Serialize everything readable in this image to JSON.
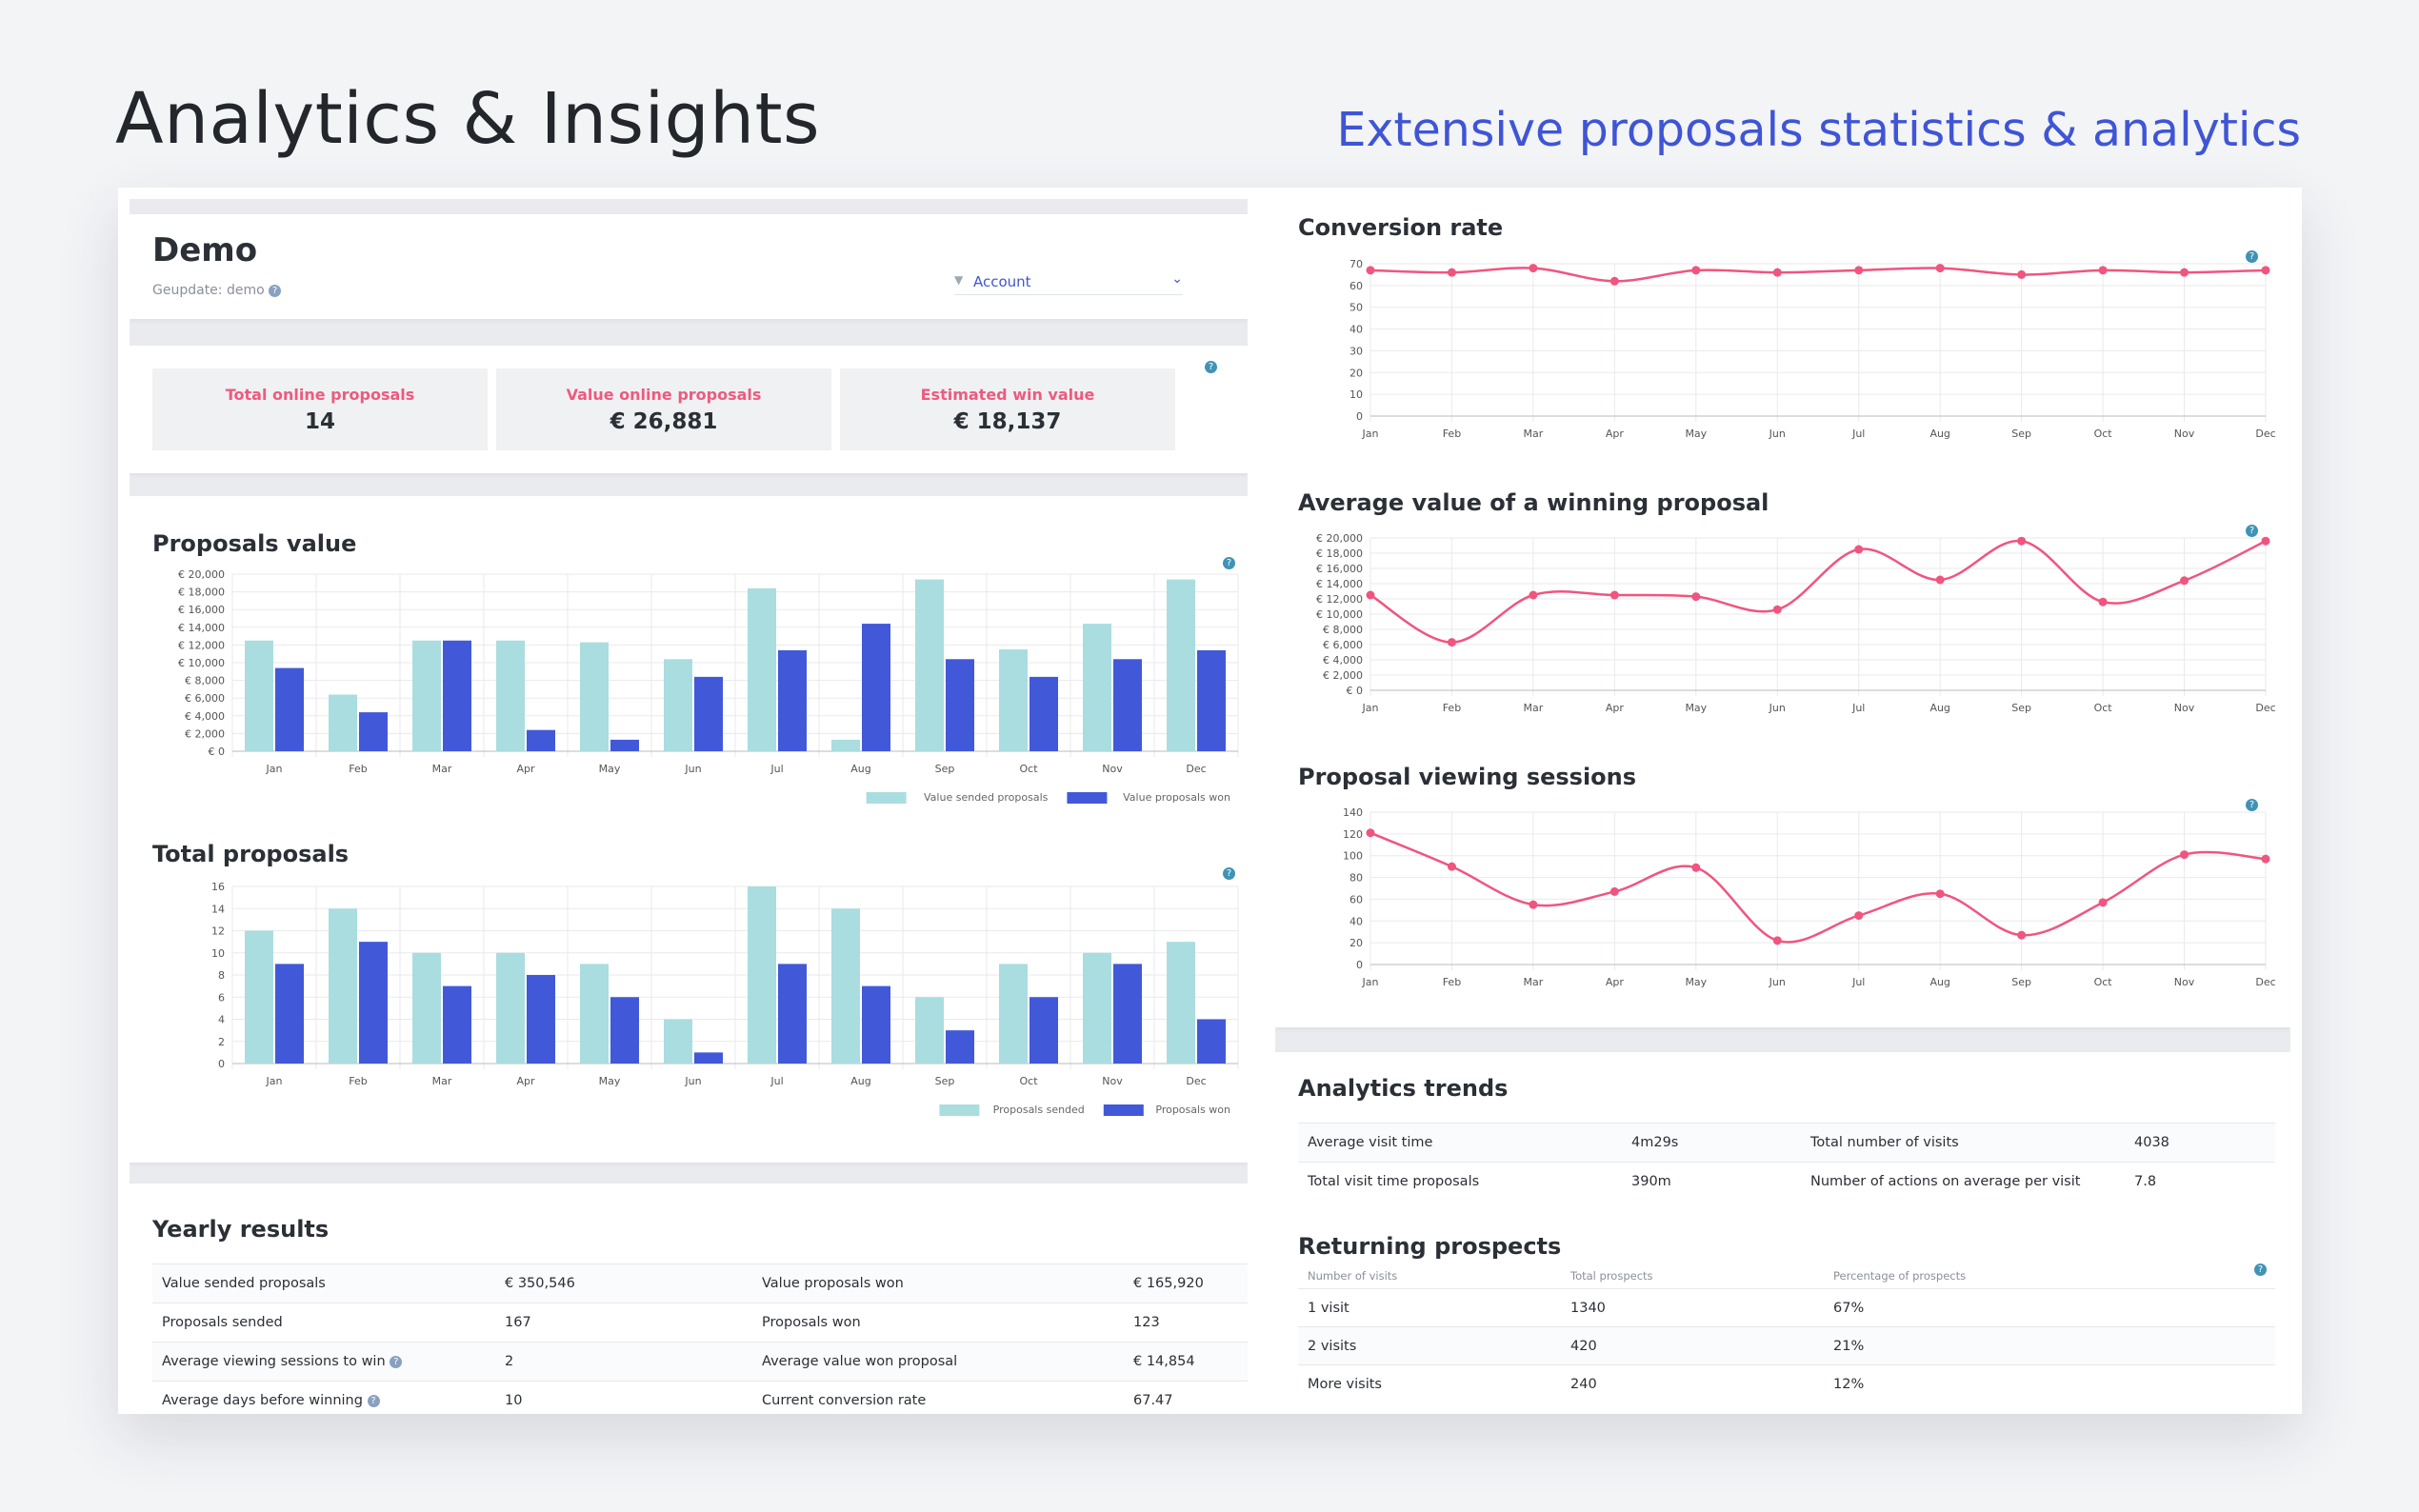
{
  "header": {
    "title": "Analytics & Insights",
    "subtitle": "Extensive proposals statistics & analytics"
  },
  "demo": {
    "title": "Demo",
    "updated": "Geupdate: demo",
    "account_label": "Account"
  },
  "kpis": [
    {
      "label": "Total online proposals",
      "value": "14"
    },
    {
      "label": "Value online proposals",
      "value": "€ 26,881"
    },
    {
      "label": "Estimated win value",
      "value": "€ 18,137"
    }
  ],
  "proposals_value_title": "Proposals value",
  "total_proposals_title": "Total proposals",
  "conversion_title": "Conversion rate",
  "avg_value_title": "Average value of a winning proposal",
  "sessions_title": "Proposal viewing sessions",
  "chart_data": [
    {
      "type": "bar",
      "title": "Proposals value",
      "categories": [
        "Jan",
        "Feb",
        "Mar",
        "Apr",
        "May",
        "Jun",
        "Jul",
        "Aug",
        "Sep",
        "Oct",
        "Nov",
        "Dec"
      ],
      "series": [
        {
          "name": "Value sended proposals",
          "color": "#aadde0",
          "values": [
            12500,
            6400,
            12500,
            12500,
            12300,
            10400,
            18400,
            1300,
            19400,
            11500,
            14400,
            19400
          ]
        },
        {
          "name": "Value proposals won",
          "color": "#4159d8",
          "values": [
            9400,
            4400,
            12500,
            2400,
            1300,
            8400,
            11400,
            14400,
            10400,
            8400,
            10400,
            11400
          ]
        }
      ],
      "ylim": [
        0,
        20000
      ],
      "yticks": [
        0,
        2000,
        4000,
        6000,
        8000,
        10000,
        12000,
        14000,
        16000,
        18000,
        20000
      ],
      "ytick_labels": [
        "€ 0",
        "€ 2,000",
        "€ 4,000",
        "€ 6,000",
        "€ 8,000",
        "€ 10,000",
        "€ 12,000",
        "€ 14,000",
        "€ 16,000",
        "€ 18,000",
        "€ 20,000"
      ],
      "legend": "bottom-right"
    },
    {
      "type": "bar",
      "title": "Total proposals",
      "categories": [
        "Jan",
        "Feb",
        "Mar",
        "Apr",
        "May",
        "Jun",
        "Jul",
        "Aug",
        "Sep",
        "Oct",
        "Nov",
        "Dec"
      ],
      "series": [
        {
          "name": "Proposals sended",
          "color": "#aadde0",
          "values": [
            12,
            14,
            10,
            10,
            9,
            4,
            16,
            14,
            6,
            9,
            10,
            11
          ]
        },
        {
          "name": "Proposals won",
          "color": "#4159d8",
          "values": [
            9,
            11,
            7,
            8,
            6,
            1,
            9,
            7,
            3,
            6,
            9,
            4
          ]
        }
      ],
      "ylim": [
        0,
        16
      ],
      "yticks": [
        0,
        2,
        4,
        6,
        8,
        10,
        12,
        14,
        16
      ],
      "ytick_labels": [
        "0",
        "2",
        "4",
        "6",
        "8",
        "10",
        "12",
        "14",
        "16"
      ],
      "legend": "bottom-right"
    },
    {
      "type": "line",
      "title": "Conversion rate",
      "categories": [
        "Jan",
        "Feb",
        "Mar",
        "Apr",
        "May",
        "Jun",
        "Jul",
        "Aug",
        "Sep",
        "Oct",
        "Nov",
        "Dec"
      ],
      "values": [
        67,
        66,
        68,
        62,
        67,
        66,
        67,
        68,
        65,
        67,
        66,
        67
      ],
      "ylim": [
        0,
        70
      ],
      "yticks": [
        0,
        10,
        20,
        30,
        40,
        50,
        60,
        70
      ],
      "ytick_labels": [
        "0",
        "10",
        "20",
        "30",
        "40",
        "50",
        "60",
        "70"
      ],
      "color": "#f0557f"
    },
    {
      "type": "line",
      "title": "Average value of a winning proposal",
      "categories": [
        "Jan",
        "Feb",
        "Mar",
        "Apr",
        "May",
        "Jun",
        "Jul",
        "Aug",
        "Sep",
        "Oct",
        "Nov",
        "Dec"
      ],
      "values": [
        12500,
        6300,
        12500,
        12500,
        12300,
        10600,
        18500,
        14500,
        19600,
        11600,
        14400,
        19600
      ],
      "ylim": [
        0,
        20000
      ],
      "yticks": [
        0,
        2000,
        4000,
        6000,
        8000,
        10000,
        12000,
        14000,
        16000,
        18000,
        20000
      ],
      "ytick_labels": [
        "€ 0",
        "€ 2,000",
        "€ 4,000",
        "€ 6,000",
        "€ 8,000",
        "€ 10,000",
        "€ 12,000",
        "€ 14,000",
        "€ 16,000",
        "€ 18,000",
        "€ 20,000"
      ],
      "color": "#f0557f"
    },
    {
      "type": "line",
      "title": "Proposal viewing sessions",
      "categories": [
        "Jan",
        "Feb",
        "Mar",
        "Apr",
        "May",
        "Jun",
        "Jul",
        "Aug",
        "Sep",
        "Oct",
        "Nov",
        "Dec"
      ],
      "values": [
        121,
        90,
        55,
        67,
        89,
        22,
        45,
        65,
        27,
        57,
        101,
        97
      ],
      "ylim": [
        0,
        140
      ],
      "yticks": [
        0,
        20,
        40,
        60,
        80,
        100,
        120,
        140
      ],
      "ytick_labels": [
        "0",
        "20",
        "40",
        "60",
        "80",
        "100",
        "120",
        "140"
      ],
      "color": "#f0557f"
    }
  ],
  "yearly": {
    "title": "Yearly results",
    "rows": [
      [
        "Value sended proposals",
        "€ 350,546",
        "Value proposals won",
        "€ 165,920"
      ],
      [
        "Proposals sended",
        "167",
        "Proposals won",
        "123"
      ],
      [
        "Average viewing sessions to win",
        "2",
        "Average value won proposal",
        "€ 14,854"
      ],
      [
        "Average days before winning",
        "10",
        "Current conversion rate",
        "67.47"
      ]
    ]
  },
  "trends": {
    "title": "Analytics trends",
    "rows": [
      [
        "Average visit time",
        "4m29s",
        "Total number of visits",
        "4038"
      ],
      [
        "Total visit time proposals",
        "390m",
        "Number of actions on average per visit",
        "7.8"
      ]
    ]
  },
  "returning": {
    "title": "Returning prospects",
    "headers": [
      "Number of visits",
      "Total prospects",
      "Percentage of prospects"
    ],
    "rows": [
      [
        "1 visit",
        "1340",
        "67%"
      ],
      [
        "2 visits",
        "420",
        "21%"
      ],
      [
        "More visits",
        "240",
        "12%"
      ]
    ]
  }
}
